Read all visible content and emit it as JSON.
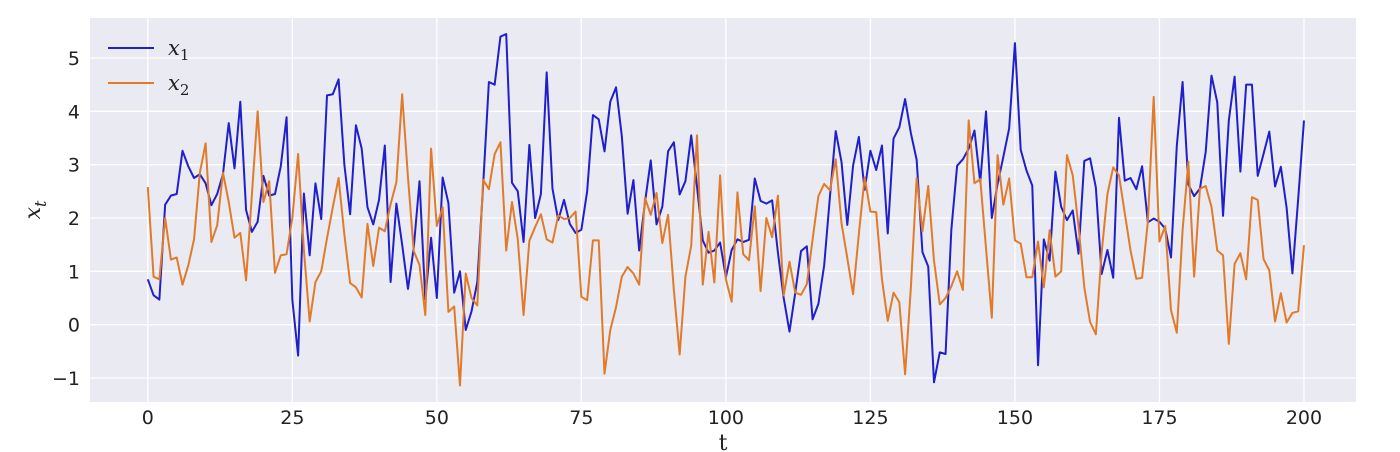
{
  "chart_data": {
    "type": "line",
    "title": "",
    "xlabel": "t",
    "ylabel": "x_t",
    "xlim": [
      -10,
      209
    ],
    "ylim": [
      -1.45,
      5.75
    ],
    "xticks": [
      0,
      25,
      50,
      75,
      100,
      125,
      150,
      175,
      200
    ],
    "yticks": [
      -1,
      0,
      1,
      2,
      3,
      4,
      5
    ],
    "grid": true,
    "background": "#EAEAF2",
    "legend_position": "top-left",
    "x_start": 0,
    "series": [
      {
        "name": "x_1",
        "name_main": "x",
        "name_sub": "1",
        "color": "#1F1FCC",
        "values": [
          0.85,
          0.55,
          0.47,
          2.25,
          2.42,
          2.45,
          3.26,
          2.97,
          2.75,
          2.82,
          2.65,
          2.24,
          2.45,
          2.82,
          3.78,
          2.93,
          4.18,
          2.15,
          1.74,
          1.93,
          2.79,
          2.42,
          2.45,
          2.97,
          3.89,
          0.47,
          -0.58,
          2.46,
          1.3,
          2.65,
          1.98,
          4.3,
          4.32,
          4.6,
          3.0,
          2.07,
          3.74,
          3.3,
          2.2,
          1.88,
          2.34,
          3.36,
          0.8,
          2.27,
          1.5,
          0.67,
          1.44,
          2.69,
          0.48,
          1.63,
          0.5,
          2.76,
          2.28,
          0.6,
          1.0,
          -0.1,
          0.25,
          0.8,
          2.6,
          4.55,
          4.5,
          5.4,
          5.45,
          2.66,
          2.5,
          1.55,
          3.37,
          2.0,
          2.45,
          4.73,
          2.55,
          1.96,
          2.34,
          1.89,
          1.72,
          1.78,
          2.5,
          3.93,
          3.85,
          3.25,
          4.18,
          4.45,
          3.53,
          2.08,
          2.71,
          1.39,
          2.29,
          3.08,
          1.88,
          2.21,
          3.25,
          3.42,
          2.44,
          2.69,
          3.55,
          2.59,
          1.58,
          1.35,
          1.39,
          1.54,
          0.89,
          1.4,
          1.6,
          1.55,
          1.59,
          2.74,
          2.32,
          2.27,
          2.33,
          1.35,
          0.5,
          -0.13,
          0.6,
          1.38,
          1.47,
          0.1,
          0.39,
          1.11,
          2.4,
          3.63,
          3.05,
          1.87,
          2.98,
          3.52,
          2.53,
          3.26,
          2.9,
          3.36,
          1.71,
          3.49,
          3.7,
          4.23,
          3.59,
          3.09,
          1.36,
          1.09,
          -1.08,
          -0.52,
          -0.55,
          1.78,
          2.98,
          3.1,
          3.3,
          3.64,
          2.67,
          4.0,
          2.0,
          2.64,
          3.15,
          3.68,
          5.28,
          3.28,
          2.89,
          2.61,
          -0.76,
          1.6,
          1.2,
          2.87,
          2.21,
          1.96,
          2.14,
          1.33,
          3.07,
          3.12,
          2.57,
          0.95,
          1.4,
          0.88,
          3.88,
          2.7,
          2.75,
          2.54,
          2.97,
          1.92,
          1.99,
          1.93,
          1.8,
          1.26,
          3.35,
          4.55,
          2.63,
          2.41,
          2.55,
          3.24,
          4.67,
          4.17,
          2.04,
          3.83,
          4.65,
          2.87,
          4.5,
          4.5,
          2.79,
          3.2,
          3.62,
          2.59,
          2.96,
          2.19,
          0.96,
          2.36,
          3.83
        ]
      },
      {
        "name": "x_2",
        "name_main": "x",
        "name_sub": "2",
        "color": "#E07B2A",
        "values": [
          2.58,
          0.9,
          0.85,
          2.0,
          1.22,
          1.26,
          0.75,
          1.11,
          1.6,
          2.85,
          3.4,
          1.55,
          1.86,
          2.85,
          2.3,
          1.63,
          1.72,
          0.83,
          2.43,
          4.0,
          2.3,
          2.69,
          0.97,
          1.3,
          1.32,
          2.0,
          3.2,
          1.4,
          0.06,
          0.8,
          1.0,
          1.62,
          2.2,
          2.75,
          1.69,
          0.78,
          0.7,
          0.51,
          1.89,
          1.1,
          1.82,
          1.75,
          2.26,
          2.67,
          4.32,
          2.77,
          1.38,
          1.12,
          0.18,
          3.3,
          1.85,
          2.2,
          0.24,
          0.34,
          -1.14,
          0.96,
          0.5,
          0.36,
          2.72,
          2.54,
          3.2,
          3.42,
          1.39,
          2.3,
          1.6,
          0.18,
          1.57,
          1.83,
          2.07,
          1.6,
          1.54,
          2.05,
          1.98,
          2.0,
          2.12,
          0.52,
          0.46,
          1.58,
          1.58,
          -0.92,
          -0.1,
          0.33,
          0.9,
          1.08,
          0.96,
          0.75,
          2.38,
          2.06,
          2.47,
          1.53,
          2.06,
          0.65,
          -0.56,
          0.9,
          1.48,
          3.55,
          0.75,
          1.74,
          0.79,
          2.8,
          0.85,
          0.43,
          2.48,
          1.32,
          1.21,
          2.22,
          0.63,
          2.0,
          1.64,
          2.42,
          0.55,
          1.18,
          0.6,
          0.56,
          0.76,
          1.6,
          2.41,
          2.64,
          2.52,
          3.1,
          1.9,
          1.25,
          0.57,
          1.7,
          2.76,
          2.12,
          2.11,
          0.85,
          0.07,
          0.6,
          0.42,
          -0.93,
          0.7,
          2.75,
          1.75,
          2.6,
          1.2,
          0.38,
          0.5,
          0.72,
          1.0,
          0.65,
          3.83,
          2.65,
          2.73,
          1.43,
          0.13,
          3.18,
          2.25,
          2.74,
          1.58,
          1.52,
          0.89,
          0.89,
          1.56,
          0.7,
          1.77,
          0.9,
          1.0,
          3.18,
          2.8,
          1.85,
          0.7,
          0.05,
          -0.18,
          1.35,
          2.45,
          2.95,
          2.8,
          2.09,
          1.39,
          0.86,
          0.88,
          1.94,
          4.27,
          1.56,
          1.85,
          0.27,
          -0.15,
          1.77,
          3.06,
          0.9,
          2.55,
          2.6,
          2.21,
          1.39,
          1.3,
          -0.36,
          1.14,
          1.34,
          0.85,
          2.39,
          2.34,
          1.23,
          1.02,
          0.06,
          0.59,
          0.04,
          0.22,
          0.25,
          1.49
        ]
      }
    ]
  }
}
